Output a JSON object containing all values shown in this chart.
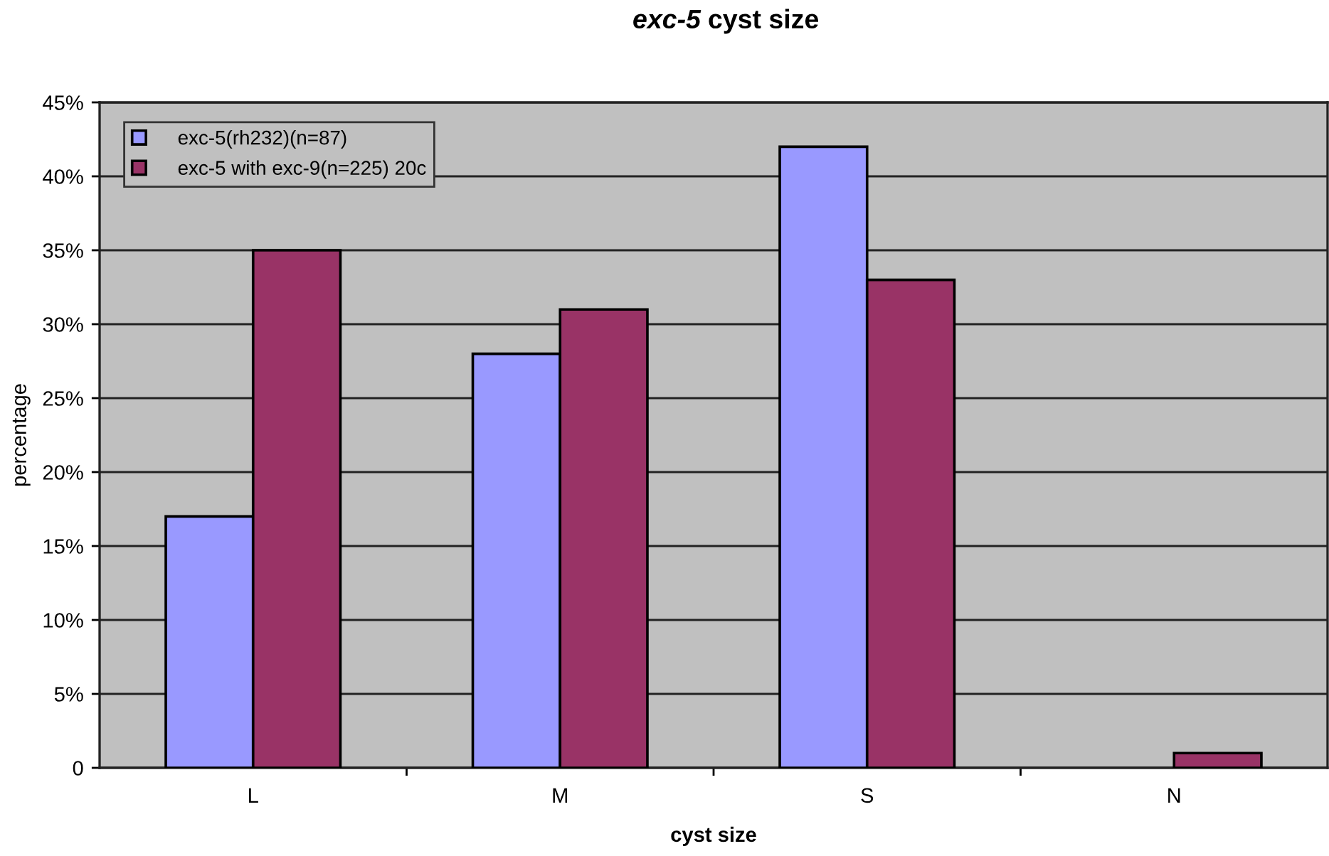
{
  "chart_data": {
    "type": "bar",
    "title": "exc-5 cyst size",
    "xlabel": "cyst size",
    "ylabel": "percentage",
    "categories": [
      "L",
      "M",
      "S",
      "N"
    ],
    "series": [
      {
        "name": "exc-5(rh232)(n=87)",
        "color": "#9999ff",
        "values": [
          17,
          28,
          42,
          null
        ]
      },
      {
        "name": "exc-5 with exc-9(n=225) 20c",
        "color": "#993366",
        "values": [
          35,
          31,
          33,
          1
        ]
      }
    ],
    "ylim": [
      0,
      45
    ],
    "yticks": [
      0,
      {
        "value": 5,
        "label": "5%"
      },
      {
        "value": 10,
        "label": "10%"
      },
      {
        "value": 15,
        "label": "15%"
      },
      {
        "value": 20,
        "label": "20%"
      },
      {
        "value": 25,
        "label": "25%"
      },
      {
        "value": 30,
        "label": "30%"
      },
      {
        "value": 35,
        "label": "35%"
      },
      {
        "value": 40,
        "label": "40%"
      },
      {
        "value": 45,
        "label": "45%"
      }
    ],
    "grid": "y",
    "legend": "top left"
  }
}
